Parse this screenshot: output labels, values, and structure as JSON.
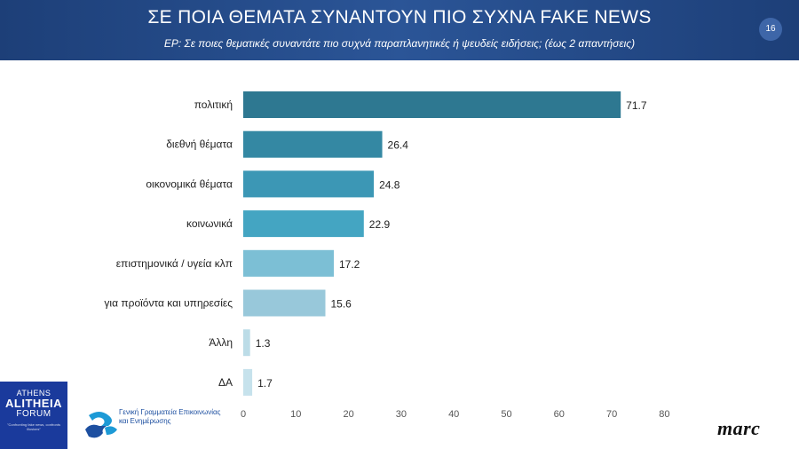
{
  "header": {
    "title": "ΣΕ ΠΟΙΑ ΘΕΜΑΤΑ ΣΥΝΑΝΤΟΥΝ ΠΙΟ ΣΥΧΝΑ FAKE NEWS",
    "subtitle": "ΕΡ:  Σε ποιες θεματικές συναντάτε πιο συχνά παραπλανητικές ή ψευδείς ειδήσεις; (έως 2 απαντήσεις)",
    "page_number": "16",
    "colors": {
      "bar_start": "#1d3f78",
      "bar_end": "#2b5597"
    }
  },
  "chart_data": {
    "type": "bar",
    "orientation": "horizontal",
    "categories": [
      "πολιτική",
      "διεθνή θέματα",
      "οικονομικά θέματα",
      "κοινωνικά",
      "επιστημονικά / υγεία κλπ",
      "για προϊόντα και υπηρεσίες",
      "Άλλη",
      "ΔΑ"
    ],
    "values": [
      71.7,
      26.4,
      24.8,
      22.9,
      17.2,
      15.6,
      1.3,
      1.7
    ],
    "value_labels": [
      "71.7",
      "26.4",
      "24.8",
      "22.9",
      "17.2",
      "15.6",
      "1.3",
      "1.7"
    ],
    "bar_colors": [
      "#2e7891",
      "#3488a3",
      "#3c97b5",
      "#44a5c2",
      "#7cbfd5",
      "#98c8da",
      "#bcdce7",
      "#c6e2ec"
    ],
    "xlim": [
      0,
      80
    ],
    "xticks": [
      0,
      10,
      20,
      30,
      40,
      50,
      60,
      70,
      80
    ],
    "xtick_labels": [
      "0",
      "10",
      "20",
      "30",
      "40",
      "50",
      "60",
      "70",
      "80"
    ],
    "grid": false,
    "legend": "none"
  },
  "footer": {
    "event_logo": {
      "line1": "ATHENS",
      "line2": "ALITHEIA",
      "line3": "FORUM",
      "tagline": "\"Confronting fake news, confronts illusions\""
    },
    "gov_logo": {
      "line1": "Γενική Γραμματεία Επικοινωνίας",
      "line2": "και Ενημέρωσης"
    },
    "brand": "marc"
  }
}
